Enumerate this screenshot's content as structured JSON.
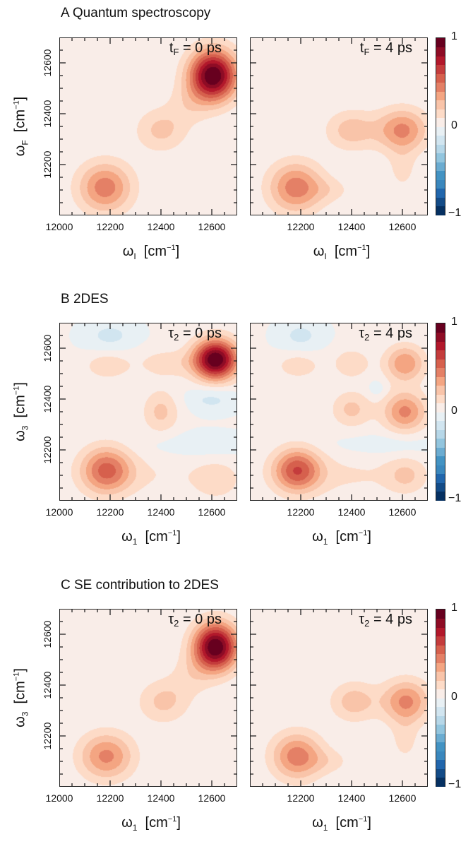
{
  "chart_data": [
    {
      "type": "heatmap",
      "id": "A-left",
      "panel_title": "A  Quantum spectroscopy",
      "annotation": {
        "symbol": "t",
        "sub": "F",
        "text": " = 0 ps"
      },
      "xlabel": {
        "symbol": "ω",
        "sub": "I",
        "unit": "[cm",
        "sup": "−1",
        "close": "]"
      },
      "ylabel": {
        "symbol": "ω",
        "sub": "F",
        "unit": "[cm",
        "sup": "−1",
        "close": "]"
      },
      "xlim": [
        12000,
        12700
      ],
      "ylim": [
        12000,
        12700
      ],
      "xticks": [
        "12000",
        "12200",
        "12400",
        "12600"
      ],
      "yticks": [
        "12200",
        "12400",
        "12600"
      ],
      "peaks": [
        {
          "x": 12605,
          "y": 12550,
          "amp": 1.0,
          "sx": 65,
          "sy": 70
        },
        {
          "x": 12180,
          "y": 12110,
          "amp": 0.45,
          "sx": 75,
          "sy": 70
        },
        {
          "x": 12400,
          "y": 12335,
          "amp": 0.22,
          "sx": 70,
          "sy": 60
        },
        {
          "x": 12510,
          "y": 12440,
          "amp": 0.12,
          "sx": 60,
          "sy": 60
        }
      ]
    },
    {
      "type": "heatmap",
      "id": "A-right",
      "annotation": {
        "symbol": "t",
        "sub": "F",
        "text": " = 4 ps"
      },
      "xlabel": {
        "symbol": "ω",
        "sub": "I",
        "unit": "[cm",
        "sup": "−1",
        "close": "]"
      },
      "xlim": [
        12000,
        12700
      ],
      "ylim": [
        12000,
        12700
      ],
      "xticks": [
        "12200",
        "12400",
        "12600"
      ],
      "peaks": [
        {
          "x": 12180,
          "y": 12110,
          "amp": 0.45,
          "sx": 75,
          "sy": 70
        },
        {
          "x": 12600,
          "y": 12335,
          "amp": 0.42,
          "sx": 70,
          "sy": 60
        },
        {
          "x": 12400,
          "y": 12335,
          "amp": 0.25,
          "sx": 70,
          "sy": 55
        },
        {
          "x": 12600,
          "y": 12180,
          "amp": 0.12,
          "sx": 40,
          "sy": 60
        },
        {
          "x": 12320,
          "y": 12100,
          "amp": 0.1,
          "sx": 60,
          "sy": 35
        }
      ]
    },
    {
      "type": "heatmap",
      "id": "B-left",
      "panel_title": "B  2DES",
      "annotation": {
        "symbol": "τ",
        "sub": "2",
        "text": " = 0 ps"
      },
      "xlabel": {
        "symbol": "ω",
        "sub": "1",
        "unit": "[cm",
        "sup": "−1",
        "close": "]"
      },
      "ylabel": {
        "symbol": "ω",
        "sub": "3",
        "unit": "[cm",
        "sup": "−1",
        "close": "]"
      },
      "xlim": [
        12000,
        12700
      ],
      "ylim": [
        12000,
        12700
      ],
      "xticks": [
        "12000",
        "12200",
        "12400",
        "12600"
      ],
      "yticks": [
        "12200",
        "12400",
        "12600"
      ],
      "peaks": [
        {
          "x": 12615,
          "y": 12555,
          "amp": 1.0,
          "sx": 60,
          "sy": 55
        },
        {
          "x": 12185,
          "y": 12120,
          "amp": 0.5,
          "sx": 70,
          "sy": 65
        },
        {
          "x": 12400,
          "y": 12350,
          "amp": 0.22,
          "sx": 50,
          "sy": 60
        },
        {
          "x": 12190,
          "y": 12530,
          "amp": 0.18,
          "sx": 60,
          "sy": 35
        },
        {
          "x": 12420,
          "y": 12540,
          "amp": 0.15,
          "sx": 80,
          "sy": 40
        },
        {
          "x": 12620,
          "y": 12080,
          "amp": 0.15,
          "sx": 60,
          "sy": 50
        },
        {
          "x": 12380,
          "y": 12100,
          "amp": 0.08,
          "sx": 200,
          "sy": 60
        },
        {
          "x": 12200,
          "y": 12650,
          "amp": -0.14,
          "sx": 70,
          "sy": 40
        },
        {
          "x": 12600,
          "y": 12400,
          "amp": -0.14,
          "sx": 70,
          "sy": 35
        },
        {
          "x": 12550,
          "y": 12220,
          "amp": -0.08,
          "sx": 150,
          "sy": 35
        }
      ]
    },
    {
      "type": "heatmap",
      "id": "B-right",
      "annotation": {
        "symbol": "τ",
        "sub": "2",
        "text": " = 4 ps"
      },
      "xlabel": {
        "symbol": "ω",
        "sub": "1",
        "unit": "[cm",
        "sup": "−1",
        "close": "]"
      },
      "xlim": [
        12000,
        12700
      ],
      "ylim": [
        12000,
        12700
      ],
      "xticks": [
        "12200",
        "12400",
        "12600"
      ],
      "peaks": [
        {
          "x": 12185,
          "y": 12120,
          "amp": 0.55,
          "sx": 65,
          "sy": 60
        },
        {
          "x": 12610,
          "y": 12350,
          "amp": 0.42,
          "sx": 60,
          "sy": 55
        },
        {
          "x": 12610,
          "y": 12540,
          "amp": 0.38,
          "sx": 55,
          "sy": 50
        },
        {
          "x": 12400,
          "y": 12360,
          "amp": 0.22,
          "sx": 55,
          "sy": 50
        },
        {
          "x": 12400,
          "y": 12540,
          "amp": 0.18,
          "sx": 50,
          "sy": 40
        },
        {
          "x": 12190,
          "y": 12530,
          "amp": 0.16,
          "sx": 60,
          "sy": 35
        },
        {
          "x": 12615,
          "y": 12100,
          "amp": 0.18,
          "sx": 55,
          "sy": 50
        },
        {
          "x": 12380,
          "y": 12100,
          "amp": 0.1,
          "sx": 200,
          "sy": 60
        },
        {
          "x": 12200,
          "y": 12650,
          "amp": -0.14,
          "sx": 60,
          "sy": 40
        },
        {
          "x": 12550,
          "y": 12220,
          "amp": -0.08,
          "sx": 150,
          "sy": 30
        },
        {
          "x": 12500,
          "y": 12440,
          "amp": -0.1,
          "sx": 25,
          "sy": 25
        }
      ]
    },
    {
      "type": "heatmap",
      "id": "C-left",
      "panel_title": "C  SE contribution to 2DES",
      "annotation": {
        "symbol": "τ",
        "sub": "2",
        "text": " = 0 ps"
      },
      "xlabel": {
        "symbol": "ω",
        "sub": "1",
        "unit": "[cm",
        "sup": "−1",
        "close": "]"
      },
      "ylabel": {
        "symbol": "ω",
        "sub": "3",
        "unit": "[cm",
        "sup": "−1",
        "close": "]"
      },
      "xlim": [
        12000,
        12700
      ],
      "ylim": [
        12000,
        12700
      ],
      "xticks": [
        "12000",
        "12200",
        "12400",
        "12600"
      ],
      "yticks": [
        "12200",
        "12400",
        "12600"
      ],
      "peaks": [
        {
          "x": 12615,
          "y": 12550,
          "amp": 1.0,
          "sx": 60,
          "sy": 65
        },
        {
          "x": 12185,
          "y": 12120,
          "amp": 0.42,
          "sx": 75,
          "sy": 65
        },
        {
          "x": 12410,
          "y": 12335,
          "amp": 0.22,
          "sx": 70,
          "sy": 60
        },
        {
          "x": 12520,
          "y": 12440,
          "amp": 0.12,
          "sx": 60,
          "sy": 60
        }
      ]
    },
    {
      "type": "heatmap",
      "id": "C-right",
      "annotation": {
        "symbol": "τ",
        "sub": "2",
        "text": " = 4 ps"
      },
      "xlabel": {
        "symbol": "ω",
        "sub": "1",
        "unit": "[cm",
        "sup": "−1",
        "close": "]"
      },
      "xlim": [
        12000,
        12700
      ],
      "ylim": [
        12000,
        12700
      ],
      "xticks": [
        "12200",
        "12400",
        "12600"
      ],
      "peaks": [
        {
          "x": 12185,
          "y": 12120,
          "amp": 0.45,
          "sx": 70,
          "sy": 65
        },
        {
          "x": 12615,
          "y": 12335,
          "amp": 0.42,
          "sx": 65,
          "sy": 60
        },
        {
          "x": 12410,
          "y": 12335,
          "amp": 0.25,
          "sx": 65,
          "sy": 55
        },
        {
          "x": 12610,
          "y": 12180,
          "amp": 0.12,
          "sx": 40,
          "sy": 60
        },
        {
          "x": 12320,
          "y": 12100,
          "amp": 0.1,
          "sx": 60,
          "sy": 35
        }
      ]
    }
  ],
  "colorbar": {
    "labels": {
      "max": "1",
      "mid": "0",
      "min": "−1"
    },
    "range": [
      -1,
      1
    ],
    "levels": 20,
    "colors": [
      "#053061",
      "#134b87",
      "#2166ac",
      "#3a87bd",
      "#4393c3",
      "#6bacd1",
      "#92c5de",
      "#b6d7e8",
      "#d1e5f0",
      "#e8f0f4",
      "#f9ede8",
      "#fddbc7",
      "#f9c4a9",
      "#f4a582",
      "#e48066",
      "#d6604d",
      "#c43c3c",
      "#b2182b",
      "#8e0c25",
      "#67001f"
    ]
  }
}
